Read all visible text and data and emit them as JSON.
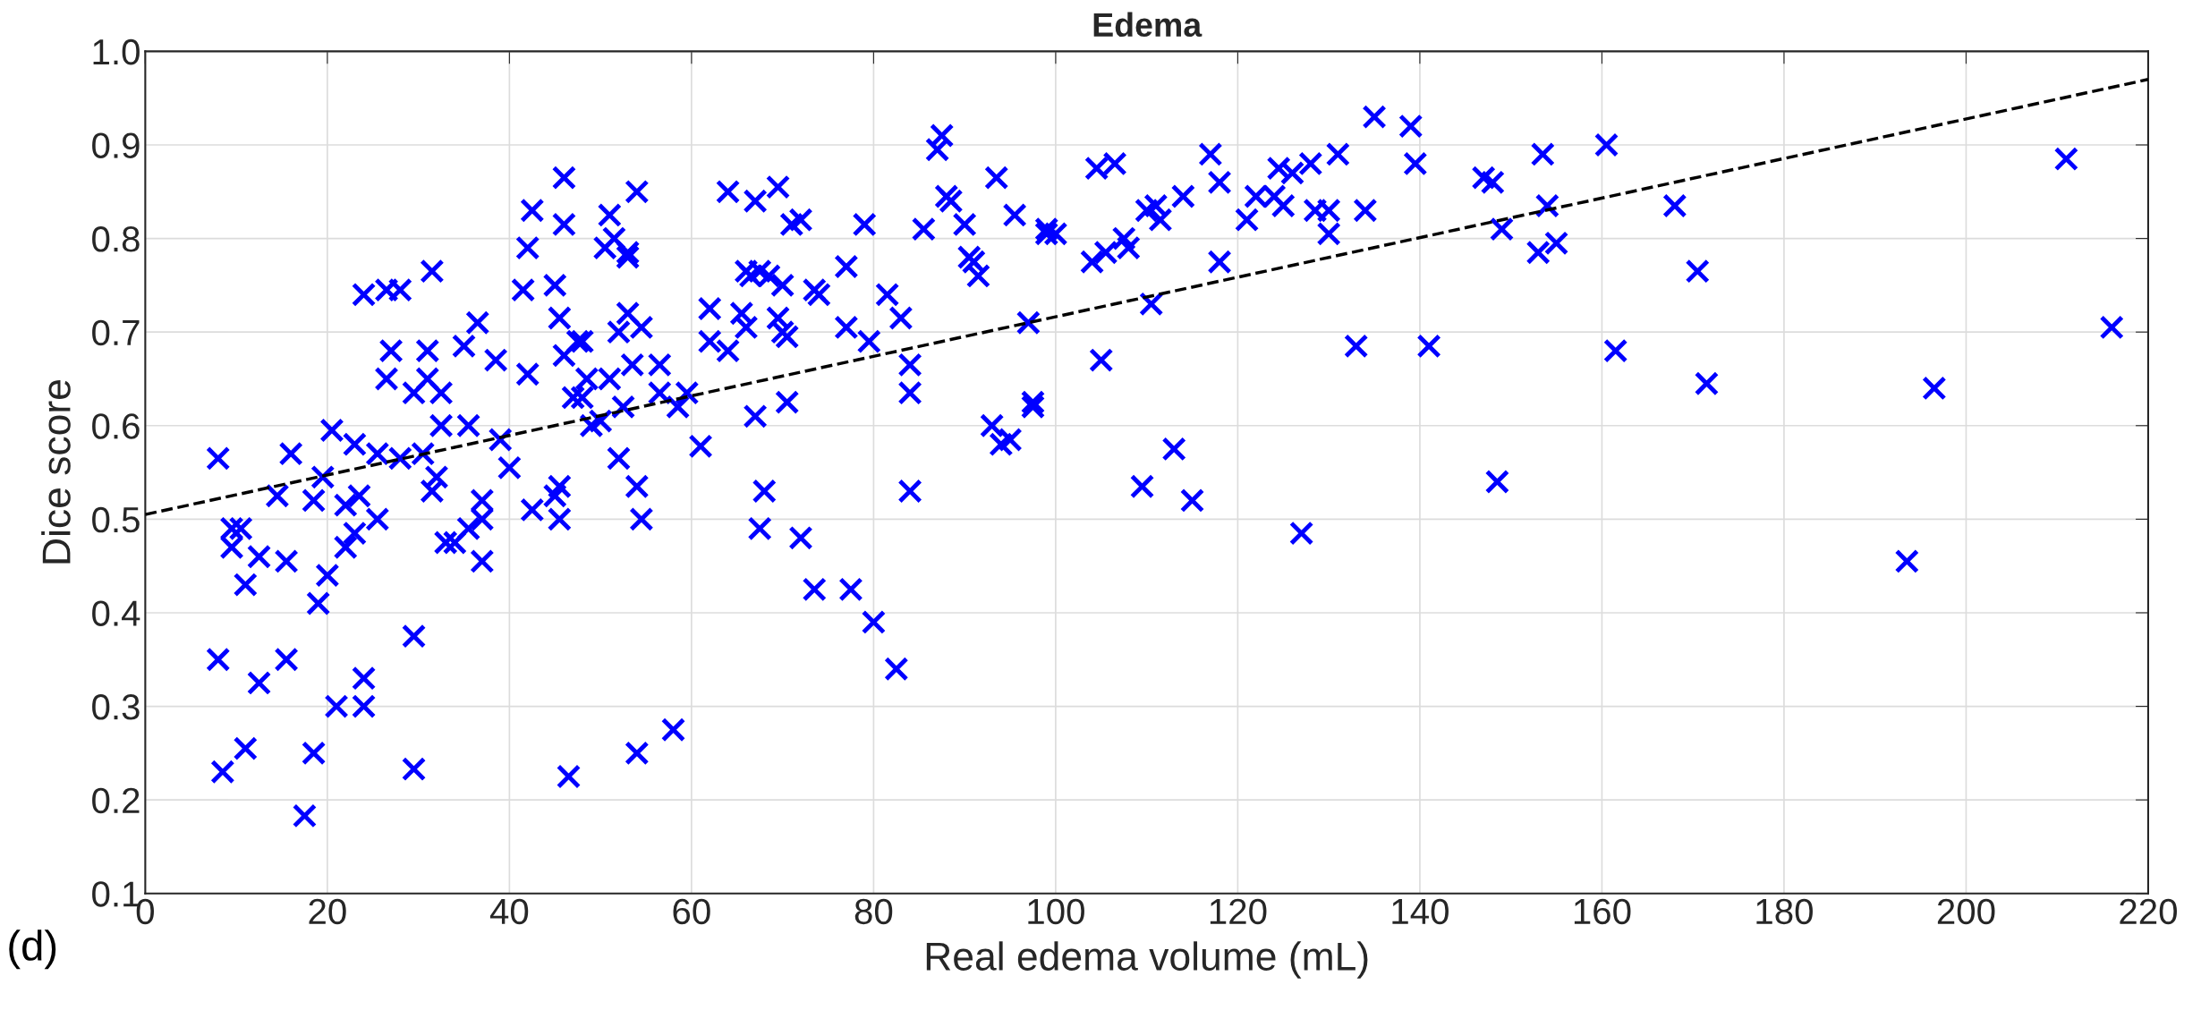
{
  "chart_data": {
    "type": "scatter",
    "title": "Edema",
    "xlabel": "Real edema volume (mL)",
    "ylabel": "Dice score",
    "annotations": [
      "(d)"
    ],
    "xlim": [
      0,
      220
    ],
    "xticks": [
      0,
      20,
      40,
      60,
      80,
      100,
      120,
      140,
      160,
      180,
      200,
      220
    ],
    "ylim": [
      0.1,
      1.0
    ],
    "yticks": [
      0.1,
      0.2,
      0.3,
      0.4,
      0.5,
      0.6,
      0.7,
      0.8,
      0.9,
      {
        "value": 1.0,
        "label": "1.0"
      }
    ],
    "grid": true,
    "marker": "cross",
    "series": [
      {
        "color": "#0000ff",
        "x": [
          8,
          8,
          8.5,
          9.5,
          9.5,
          10.5,
          11,
          11,
          12.5,
          12.5,
          14.5,
          15.5,
          15.5,
          16,
          17.5,
          18.5,
          18.5,
          19,
          19.5,
          20,
          20.5,
          21,
          22,
          22,
          23,
          23,
          23.5,
          24,
          24,
          24,
          25.5,
          25.5,
          26.5,
          26.5,
          27,
          28,
          28,
          29.5,
          29.5,
          29.5,
          30.5,
          31,
          31,
          31.5,
          31.5,
          32,
          32.5,
          32.5,
          33,
          34,
          35,
          35.5,
          35.5,
          36.5,
          37,
          37,
          37,
          38.5,
          39,
          40,
          41.5,
          42,
          42,
          42.5,
          42.5,
          45,
          45,
          45.5,
          45.5,
          45.5,
          46,
          46,
          46,
          46.5,
          47,
          47.5,
          48,
          48,
          48.5,
          49,
          50,
          50.5,
          51,
          51,
          51.5,
          52,
          52,
          52.5,
          53,
          53,
          53,
          53.5,
          54,
          54,
          54,
          54.5,
          54.5,
          56.5,
          56.5,
          58,
          58.5,
          59.5,
          61,
          62,
          62,
          64,
          64,
          65.5,
          66,
          66,
          66.5,
          67,
          67.5,
          67,
          67.5,
          68,
          68.5,
          69.5,
          69.5,
          70,
          70,
          70.5,
          70.5,
          71,
          72,
          72,
          73.5,
          73.5,
          74,
          77,
          77,
          77.5,
          79,
          79.5,
          80,
          81.5,
          82.5,
          83,
          84,
          84,
          84,
          85.5,
          87,
          87.5,
          88,
          88.5,
          90,
          90.5,
          91,
          91.5,
          93,
          93.5,
          94,
          95,
          95.5,
          97,
          97.5,
          97.5,
          99,
          99,
          100,
          104,
          104.5,
          105,
          105.5,
          106.5,
          107.5,
          108,
          109.5,
          110,
          110.5,
          111,
          111.5,
          113,
          114,
          115,
          117,
          118,
          118,
          121,
          122,
          124,
          124.5,
          125,
          126,
          127,
          128,
          128.5,
          130,
          130,
          131,
          133,
          134,
          135,
          139,
          139.5,
          141,
          147,
          148,
          148.5,
          149,
          153,
          153.5,
          154,
          155,
          160.5,
          161.5,
          168,
          170.5,
          171.5,
          193.5,
          196.5,
          211,
          216
        ],
        "values": [
          0.565,
          0.35,
          0.23,
          0.49,
          0.47,
          0.49,
          0.43,
          0.255,
          0.46,
          0.325,
          0.525,
          0.455,
          0.35,
          0.57,
          0.183,
          0.52,
          0.25,
          0.41,
          0.545,
          0.44,
          0.595,
          0.3,
          0.515,
          0.47,
          0.58,
          0.485,
          0.525,
          0.33,
          0.3,
          0.74,
          0.5,
          0.57,
          0.745,
          0.65,
          0.68,
          0.745,
          0.565,
          0.635,
          0.375,
          0.233,
          0.57,
          0.65,
          0.68,
          0.53,
          0.765,
          0.545,
          0.6,
          0.635,
          0.475,
          0.475,
          0.685,
          0.6,
          0.49,
          0.71,
          0.52,
          0.5,
          0.455,
          0.67,
          0.585,
          0.555,
          0.745,
          0.79,
          0.655,
          0.51,
          0.83,
          0.75,
          0.525,
          0.715,
          0.5,
          0.535,
          0.865,
          0.815,
          0.675,
          0.225,
          0.63,
          0.69,
          0.69,
          0.63,
          0.65,
          0.6,
          0.605,
          0.79,
          0.825,
          0.65,
          0.8,
          0.565,
          0.7,
          0.62,
          0.785,
          0.72,
          0.78,
          0.665,
          0.85,
          0.535,
          0.25,
          0.705,
          0.5,
          0.665,
          0.635,
          0.275,
          0.62,
          0.635,
          0.578,
          0.725,
          0.69,
          0.85,
          0.68,
          0.72,
          0.765,
          0.705,
          0.76,
          0.84,
          0.765,
          0.61,
          0.49,
          0.53,
          0.76,
          0.715,
          0.855,
          0.75,
          0.7,
          0.625,
          0.695,
          0.815,
          0.82,
          0.48,
          0.745,
          0.425,
          0.74,
          0.77,
          0.705,
          0.425,
          0.815,
          0.69,
          0.39,
          0.74,
          0.34,
          0.715,
          0.665,
          0.635,
          0.53,
          0.81,
          0.895,
          0.91,
          0.845,
          0.84,
          0.815,
          0.78,
          0.775,
          0.76,
          0.6,
          0.865,
          0.58,
          0.585,
          0.825,
          0.71,
          0.625,
          0.62,
          0.81,
          0.805,
          0.805,
          0.775,
          0.875,
          0.67,
          0.785,
          0.88,
          0.8,
          0.79,
          0.535,
          0.83,
          0.73,
          0.835,
          0.82,
          0.575,
          0.845,
          0.52,
          0.89,
          0.775,
          0.86,
          0.82,
          0.845,
          0.845,
          0.875,
          0.835,
          0.87,
          0.485,
          0.88,
          0.83,
          0.83,
          0.805,
          0.89,
          0.685,
          0.83,
          0.93,
          0.92,
          0.88,
          0.685,
          0.865,
          0.86,
          0.54,
          0.81,
          0.785,
          0.89,
          0.835,
          0.795,
          0.9,
          0.68,
          0.835,
          0.765,
          0.645,
          0.455,
          0.64,
          0.885,
          0.705
        ]
      },
      {
        "type": "line",
        "color": "#000000",
        "line_style": "dashed",
        "marker": "none",
        "x": [
          0,
          220
        ],
        "values": [
          0.505,
          0.97
        ]
      }
    ]
  }
}
